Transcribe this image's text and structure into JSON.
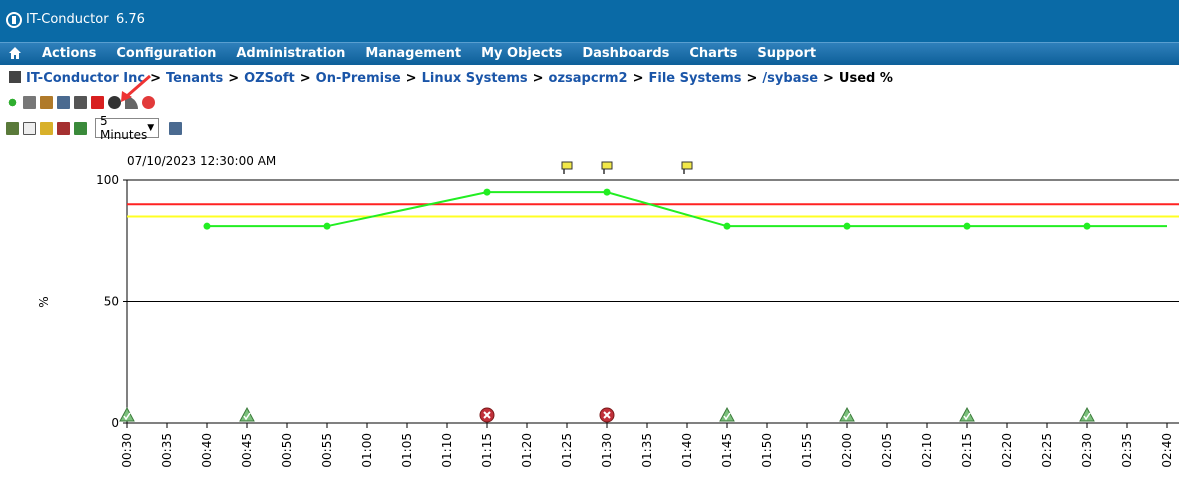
{
  "header": {
    "title": "IT-Conductor",
    "version": "6.76"
  },
  "menu": [
    "Actions",
    "Configuration",
    "Administration",
    "Management",
    "My Objects",
    "Dashboards",
    "Charts",
    "Support"
  ],
  "breadcrumb": {
    "items": [
      "IT-Conductor Inc",
      "Tenants",
      "OZSoft",
      "On-Premise",
      "Linux Systems",
      "ozsapcrm2",
      "File Systems",
      "/sybase"
    ],
    "current": "Used %",
    "separator": ">"
  },
  "toolbar": {
    "interval": "5 Minutes"
  },
  "colors": {
    "header_bg": "#0a6aa6",
    "menu_bg": "#1a6fae",
    "series": "#22ee22",
    "critical_threshold": "#ff2222",
    "warning_threshold": "#ffff22",
    "link": "#1a55a8"
  },
  "chart_data": {
    "type": "line",
    "timestamp": "07/10/2023 12:30:00 AM",
    "ylabel": "%",
    "ylim": [
      0,
      100
    ],
    "yticks": [
      0,
      50,
      100
    ],
    "categories": [
      "00:30",
      "00:35",
      "00:40",
      "00:45",
      "00:50",
      "00:55",
      "01:00",
      "01:05",
      "01:10",
      "01:15",
      "01:20",
      "01:25",
      "01:30",
      "01:35",
      "01:40",
      "01:45",
      "01:50",
      "01:55",
      "02:00",
      "02:05",
      "02:10",
      "02:15",
      "02:20",
      "02:25",
      "02:30",
      "02:35",
      "02:40"
    ],
    "series": [
      {
        "x": [
          "00:40",
          "00:55",
          "01:15",
          "01:30",
          "01:45",
          "02:00",
          "02:15",
          "02:30",
          "02:40"
        ],
        "values": [
          81,
          81,
          95,
          95,
          81,
          81,
          81,
          81,
          81
        ]
      }
    ],
    "thresholds": [
      {
        "value": 90,
        "color": "#ff2222"
      },
      {
        "value": 85,
        "color": "#ffff22"
      }
    ],
    "status_markers": [
      {
        "x": "00:30",
        "status": "ok"
      },
      {
        "x": "00:45",
        "status": "ok"
      },
      {
        "x": "01:15",
        "status": "critical"
      },
      {
        "x": "01:30",
        "status": "critical"
      },
      {
        "x": "01:45",
        "status": "ok"
      },
      {
        "x": "02:00",
        "status": "ok"
      },
      {
        "x": "02:15",
        "status": "ok"
      },
      {
        "x": "02:30",
        "status": "ok"
      }
    ],
    "event_markers": [
      "01:25",
      "01:30",
      "01:40"
    ]
  }
}
